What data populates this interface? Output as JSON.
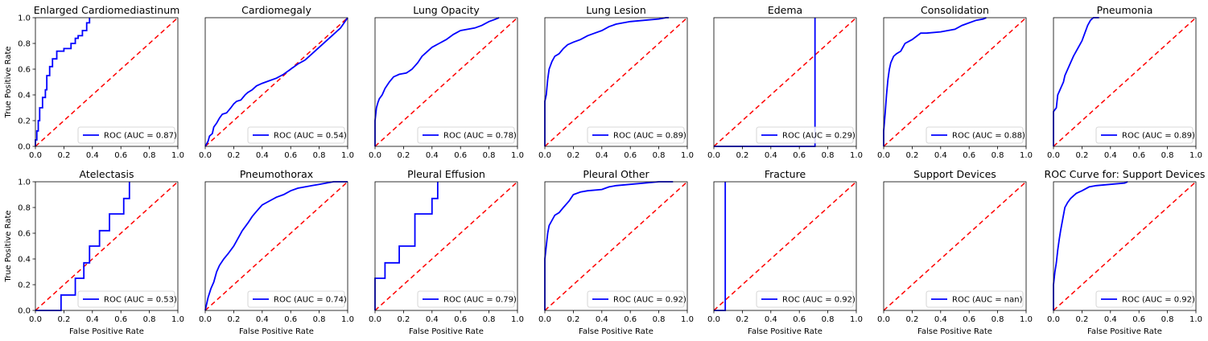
{
  "figure": {
    "xlabel": "False Positive Rate",
    "ylabel": "True Positive Rate",
    "roc_color": "#0000ff",
    "diag_color": "#ff0000",
    "tick_labels": [
      "0.0",
      "0.2",
      "0.4",
      "0.6",
      "0.8",
      "1.0"
    ]
  },
  "chart_data": [
    {
      "type": "line",
      "title": "Enlarged Cardiomediastinum",
      "xlabel": "",
      "ylabel": "True Positive Rate",
      "xlim": [
        0,
        1
      ],
      "ylim": [
        0,
        1
      ],
      "legend_loc": "lower-right",
      "series": [
        {
          "name": "ROC (AUC = 0.87)",
          "x": [
            0,
            0,
            0.01,
            0.01,
            0.02,
            0.02,
            0.03,
            0.03,
            0.05,
            0.05,
            0.07,
            0.07,
            0.08,
            0.08,
            0.1,
            0.1,
            0.12,
            0.12,
            0.15,
            0.15,
            0.2,
            0.2,
            0.25,
            0.25,
            0.28,
            0.28,
            0.3,
            0.3,
            0.33,
            0.33,
            0.36,
            0.36,
            0.38,
            0.38
          ],
          "y": [
            0,
            0.05,
            0.05,
            0.12,
            0.12,
            0.2,
            0.2,
            0.3,
            0.3,
            0.38,
            0.38,
            0.44,
            0.44,
            0.55,
            0.55,
            0.62,
            0.62,
            0.68,
            0.68,
            0.74,
            0.74,
            0.76,
            0.76,
            0.8,
            0.8,
            0.84,
            0.84,
            0.86,
            0.86,
            0.9,
            0.9,
            0.96,
            0.96,
            1.0
          ]
        }
      ]
    },
    {
      "type": "line",
      "title": "Cardiomegaly",
      "xlabel": "",
      "ylabel": "",
      "xlim": [
        0,
        1
      ],
      "ylim": [
        0,
        1
      ],
      "legend_loc": "lower-right",
      "series": [
        {
          "name": "ROC (AUC = 0.54)",
          "x": [
            0,
            0.02,
            0.03,
            0.05,
            0.06,
            0.08,
            0.1,
            0.12,
            0.15,
            0.18,
            0.2,
            0.22,
            0.25,
            0.28,
            0.3,
            0.33,
            0.36,
            0.4,
            0.45,
            0.5,
            0.55,
            0.6,
            0.65,
            0.7,
            0.75,
            0.8,
            0.85,
            0.9,
            0.95,
            1.0
          ],
          "y": [
            0,
            0.04,
            0.08,
            0.1,
            0.15,
            0.18,
            0.22,
            0.25,
            0.26,
            0.3,
            0.33,
            0.35,
            0.36,
            0.4,
            0.42,
            0.44,
            0.47,
            0.49,
            0.51,
            0.53,
            0.56,
            0.6,
            0.64,
            0.67,
            0.72,
            0.77,
            0.82,
            0.87,
            0.92,
            1.0
          ]
        }
      ]
    },
    {
      "type": "line",
      "title": "Lung Opacity",
      "xlabel": "",
      "ylabel": "",
      "xlim": [
        0,
        1
      ],
      "ylim": [
        0,
        1
      ],
      "legend_loc": "lower-right",
      "series": [
        {
          "name": "ROC (AUC = 0.78)",
          "x": [
            0,
            0,
            0.01,
            0.02,
            0.03,
            0.05,
            0.07,
            0.1,
            0.13,
            0.17,
            0.22,
            0.26,
            0.3,
            0.33,
            0.37,
            0.4,
            0.45,
            0.5,
            0.55,
            0.6,
            0.65,
            0.7,
            0.75,
            0.8,
            0.85,
            0.87
          ],
          "y": [
            0,
            0.2,
            0.3,
            0.34,
            0.37,
            0.4,
            0.45,
            0.5,
            0.54,
            0.56,
            0.57,
            0.6,
            0.65,
            0.7,
            0.74,
            0.77,
            0.8,
            0.83,
            0.87,
            0.9,
            0.91,
            0.92,
            0.94,
            0.97,
            0.99,
            1.0
          ]
        }
      ]
    },
    {
      "type": "line",
      "title": "Lung Lesion",
      "xlabel": "",
      "ylabel": "",
      "xlim": [
        0,
        1
      ],
      "ylim": [
        0,
        1
      ],
      "legend_loc": "lower-right",
      "series": [
        {
          "name": "ROC (AUC = 0.89)",
          "x": [
            0,
            0,
            0.01,
            0.02,
            0.03,
            0.05,
            0.07,
            0.1,
            0.13,
            0.16,
            0.2,
            0.25,
            0.3,
            0.35,
            0.4,
            0.45,
            0.5,
            0.6,
            0.7,
            0.8,
            0.85,
            0.87
          ],
          "y": [
            0,
            0.35,
            0.4,
            0.52,
            0.6,
            0.66,
            0.7,
            0.72,
            0.76,
            0.79,
            0.81,
            0.83,
            0.86,
            0.88,
            0.9,
            0.93,
            0.95,
            0.97,
            0.98,
            0.99,
            1.0,
            1.0
          ]
        }
      ]
    },
    {
      "type": "line",
      "title": "Edema",
      "xlabel": "",
      "ylabel": "",
      "xlim": [
        0,
        1
      ],
      "ylim": [
        0,
        1
      ],
      "legend_loc": "lower-right",
      "series": [
        {
          "name": "ROC (AUC = 0.29)",
          "x": [
            0,
            0.71,
            0.71
          ],
          "y": [
            0,
            0,
            1.0
          ]
        }
      ]
    },
    {
      "type": "line",
      "title": "Consolidation",
      "xlabel": "",
      "ylabel": "",
      "xlim": [
        0,
        1
      ],
      "ylim": [
        0,
        1
      ],
      "legend_loc": "lower-right",
      "series": [
        {
          "name": "ROC (AUC = 0.88)",
          "x": [
            0,
            0,
            0.01,
            0.02,
            0.03,
            0.04,
            0.05,
            0.07,
            0.09,
            0.12,
            0.15,
            0.2,
            0.26,
            0.3,
            0.4,
            0.5,
            0.55,
            0.6,
            0.65,
            0.7,
            0.72
          ],
          "y": [
            0,
            0.12,
            0.25,
            0.4,
            0.52,
            0.6,
            0.65,
            0.7,
            0.72,
            0.74,
            0.8,
            0.83,
            0.88,
            0.88,
            0.89,
            0.91,
            0.94,
            0.96,
            0.98,
            0.99,
            1.0
          ]
        }
      ]
    },
    {
      "type": "line",
      "title": "Pneumonia",
      "xlabel": "",
      "ylabel": "",
      "xlim": [
        0,
        1
      ],
      "ylim": [
        0,
        1
      ],
      "legend_loc": "lower-right",
      "series": [
        {
          "name": "ROC (AUC = 0.89)",
          "x": [
            0,
            0,
            0.02,
            0.03,
            0.05,
            0.07,
            0.08,
            0.1,
            0.12,
            0.14,
            0.16,
            0.18,
            0.2,
            0.22,
            0.24,
            0.26,
            0.28,
            0.3,
            0.32
          ],
          "y": [
            0,
            0.27,
            0.3,
            0.4,
            0.45,
            0.5,
            0.55,
            0.6,
            0.65,
            0.7,
            0.74,
            0.78,
            0.82,
            0.88,
            0.94,
            0.98,
            1.0,
            1.0,
            1.0
          ]
        }
      ]
    },
    {
      "type": "line",
      "title": "Atelectasis",
      "xlabel": "False Positive Rate",
      "ylabel": "True Positive Rate",
      "xlim": [
        0,
        1
      ],
      "ylim": [
        0,
        1
      ],
      "legend_loc": "lower-right",
      "series": [
        {
          "name": "ROC (AUC = 0.53)",
          "x": [
            0,
            0.18,
            0.18,
            0.28,
            0.28,
            0.34,
            0.34,
            0.38,
            0.38,
            0.45,
            0.45,
            0.52,
            0.52,
            0.62,
            0.62,
            0.66,
            0.66
          ],
          "y": [
            0,
            0,
            0.12,
            0.12,
            0.25,
            0.25,
            0.37,
            0.37,
            0.5,
            0.5,
            0.62,
            0.62,
            0.75,
            0.75,
            0.87,
            0.87,
            1.0
          ]
        }
      ]
    },
    {
      "type": "line",
      "title": "Pneumothorax",
      "xlabel": "False Positive Rate",
      "ylabel": "",
      "xlim": [
        0,
        1
      ],
      "ylim": [
        0,
        1
      ],
      "legend_loc": "lower-right",
      "series": [
        {
          "name": "ROC (AUC = 0.74)",
          "x": [
            0,
            0.01,
            0.02,
            0.04,
            0.06,
            0.08,
            0.1,
            0.13,
            0.16,
            0.2,
            0.23,
            0.26,
            0.3,
            0.33,
            0.36,
            0.4,
            0.45,
            0.5,
            0.55,
            0.6,
            0.65,
            0.7,
            0.75,
            0.8,
            0.85,
            0.9,
            1.0
          ],
          "y": [
            0,
            0.05,
            0.1,
            0.17,
            0.22,
            0.3,
            0.35,
            0.4,
            0.44,
            0.5,
            0.56,
            0.62,
            0.68,
            0.73,
            0.77,
            0.82,
            0.85,
            0.88,
            0.9,
            0.93,
            0.95,
            0.96,
            0.97,
            0.98,
            0.99,
            1.0,
            1.0
          ]
        }
      ]
    },
    {
      "type": "line",
      "title": "Pleural Effusion",
      "xlabel": "False Positive Rate",
      "ylabel": "",
      "xlim": [
        0,
        1
      ],
      "ylim": [
        0,
        1
      ],
      "legend_loc": "lower-right",
      "series": [
        {
          "name": "ROC (AUC = 0.79)",
          "x": [
            0,
            0,
            0.07,
            0.07,
            0.17,
            0.17,
            0.28,
            0.28,
            0.4,
            0.4,
            0.44,
            0.44
          ],
          "y": [
            0,
            0.25,
            0.25,
            0.37,
            0.37,
            0.5,
            0.5,
            0.75,
            0.75,
            0.87,
            0.87,
            1.0
          ]
        }
      ]
    },
    {
      "type": "line",
      "title": "Pleural Other",
      "xlabel": "False Positive Rate",
      "ylabel": "",
      "xlim": [
        0,
        1
      ],
      "ylim": [
        0,
        1
      ],
      "legend_loc": "lower-right",
      "series": [
        {
          "name": "ROC (AUC = 0.92)",
          "x": [
            0,
            0,
            0.01,
            0.02,
            0.03,
            0.05,
            0.07,
            0.1,
            0.13,
            0.17,
            0.2,
            0.25,
            0.3,
            0.4,
            0.45,
            0.5,
            0.6,
            0.7,
            0.8,
            0.9
          ],
          "y": [
            0,
            0.4,
            0.5,
            0.6,
            0.66,
            0.7,
            0.74,
            0.76,
            0.8,
            0.85,
            0.9,
            0.92,
            0.93,
            0.94,
            0.96,
            0.97,
            0.98,
            0.99,
            1.0,
            1.0
          ]
        }
      ]
    },
    {
      "type": "line",
      "title": "Fracture",
      "xlabel": "False Positive Rate",
      "ylabel": "",
      "xlim": [
        0,
        1
      ],
      "ylim": [
        0,
        1
      ],
      "legend_loc": "lower-right",
      "series": [
        {
          "name": "ROC (AUC = 0.92)",
          "x": [
            0,
            0.08,
            0.08
          ],
          "y": [
            0,
            0,
            1.0
          ]
        }
      ]
    },
    {
      "type": "line",
      "title": "Support Devices",
      "xlabel": "False Positive Rate",
      "ylabel": "",
      "xlim": [
        0,
        1
      ],
      "ylim": [
        0,
        1
      ],
      "legend_loc": "lower-right",
      "series": [
        {
          "name": "ROC (AUC = nan)",
          "x": [],
          "y": []
        }
      ]
    },
    {
      "type": "line",
      "title": "ROC Curve for: Support Devices",
      "xlabel": "False Positive Rate",
      "ylabel": "",
      "xlim": [
        0,
        1
      ],
      "ylim": [
        0,
        1
      ],
      "legend_loc": "lower-right",
      "series": [
        {
          "name": "ROC (AUC = 0.92)",
          "x": [
            0,
            0,
            0.01,
            0.02,
            0.03,
            0.04,
            0.05,
            0.06,
            0.07,
            0.08,
            0.09,
            0.1,
            0.12,
            0.14,
            0.16,
            0.2,
            0.25,
            0.3,
            0.4,
            0.5,
            0.52
          ],
          "y": [
            0,
            0.2,
            0.3,
            0.37,
            0.47,
            0.55,
            0.62,
            0.68,
            0.74,
            0.8,
            0.82,
            0.84,
            0.87,
            0.89,
            0.91,
            0.93,
            0.96,
            0.97,
            0.98,
            0.99,
            1.0
          ]
        }
      ]
    }
  ]
}
